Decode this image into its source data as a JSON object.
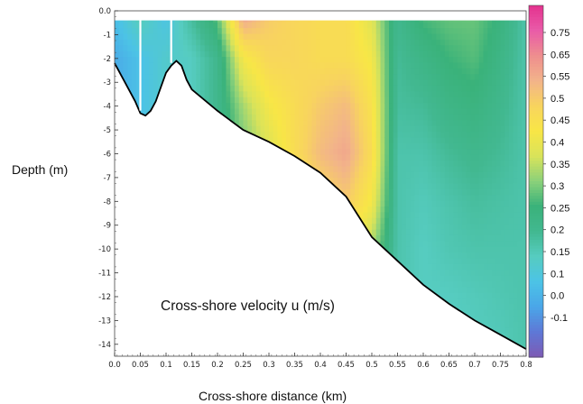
{
  "chart_data": {
    "type": "heatmap",
    "title": "",
    "annotation": "Cross-shore velocity u (m/s)",
    "xlabel": "Cross-shore distance (km)",
    "ylabel": "Depth (m)",
    "x_ticks": [
      "0.0",
      "0.05",
      "0.1",
      "0.15",
      "0.2",
      "0.25",
      "0.3",
      "0.35",
      "0.4",
      "0.45",
      "0.5",
      "0.55",
      "0.6",
      "0.65",
      "0.7",
      "0.75",
      "0.8"
    ],
    "x_end_label": "0.8",
    "y_ticks": [
      "0.0",
      "-1",
      "-2",
      "-3",
      "-4",
      "-5",
      "-6",
      "-7",
      "-8",
      "-9",
      "-10",
      "-11",
      "-12",
      "-13",
      "-14"
    ],
    "xlim": [
      0,
      0.8
    ],
    "ylim": [
      -14.5,
      0
    ],
    "colorbar": {
      "ticks": [
        "0.75",
        "0.65",
        "0.55",
        "0.5",
        "0.45",
        "0.4",
        "0.35",
        "0.3",
        "0.25",
        "0.2",
        "0.15",
        "0.1",
        "0.0",
        "-0.1"
      ],
      "range": [
        -0.15,
        0.8
      ],
      "colors": [
        "#7d5ab4",
        "#5e78d6",
        "#4aa6e8",
        "#4cc3e6",
        "#56ccc0",
        "#42b890",
        "#3ab27a",
        "#8bd17a",
        "#d9e35a",
        "#f8e646",
        "#f8d45e",
        "#f2b38a",
        "#ee8e8e",
        "#e95ba8",
        "#e4328f"
      ]
    },
    "velocity_field": {
      "x": [
        0.0,
        0.05,
        0.1,
        0.15,
        0.2,
        0.25,
        0.3,
        0.35,
        0.4,
        0.45,
        0.5,
        0.55,
        0.6,
        0.65,
        0.7,
        0.75,
        0.8
      ],
      "depths": [
        0,
        -2,
        -4,
        -6,
        -8,
        -10,
        -12,
        -14
      ],
      "u": [
        [
          0.05,
          0.15,
          0.05,
          0.18,
          0.3,
          0.65,
          0.55,
          0.52,
          0.5,
          0.5,
          0.4,
          0.2,
          0.28,
          0.3,
          0.3,
          0.25,
          0.15
        ],
        [
          0.0,
          0.05,
          0.1,
          0.12,
          0.2,
          0.45,
          0.52,
          0.52,
          0.5,
          0.5,
          0.45,
          0.18,
          0.22,
          0.26,
          0.28,
          0.22,
          0.15
        ],
        [
          0.0,
          0.05,
          0.1,
          0.12,
          0.2,
          0.35,
          0.45,
          0.5,
          0.55,
          0.58,
          0.48,
          0.17,
          0.18,
          0.22,
          0.24,
          0.2,
          0.15
        ],
        [
          0.0,
          0.05,
          0.1,
          0.12,
          0.2,
          0.3,
          0.4,
          0.5,
          0.58,
          0.62,
          0.5,
          0.15,
          0.15,
          0.18,
          0.2,
          0.18,
          0.15
        ],
        [
          0.0,
          0.05,
          0.1,
          0.12,
          0.2,
          0.28,
          0.35,
          0.45,
          0.5,
          0.55,
          0.45,
          0.15,
          0.13,
          0.15,
          0.17,
          0.16,
          0.15
        ],
        [
          0.0,
          0.05,
          0.1,
          0.12,
          0.2,
          0.25,
          0.3,
          0.4,
          0.45,
          0.45,
          0.35,
          0.15,
          0.12,
          0.14,
          0.15,
          0.15,
          0.15
        ],
        [
          0.0,
          0.05,
          0.1,
          0.12,
          0.2,
          0.25,
          0.3,
          0.35,
          0.4,
          0.4,
          0.3,
          0.15,
          0.12,
          0.12,
          0.13,
          0.14,
          0.15
        ],
        [
          0.0,
          0.05,
          0.1,
          0.12,
          0.2,
          0.25,
          0.3,
          0.35,
          0.4,
          0.4,
          0.3,
          0.15,
          0.12,
          0.12,
          0.12,
          0.13,
          0.15
        ]
      ]
    },
    "bottom_profile": {
      "x": [
        0.0,
        0.02,
        0.04,
        0.05,
        0.06,
        0.07,
        0.08,
        0.09,
        0.1,
        0.11,
        0.12,
        0.13,
        0.14,
        0.15,
        0.2,
        0.25,
        0.3,
        0.35,
        0.4,
        0.45,
        0.5,
        0.55,
        0.6,
        0.65,
        0.7,
        0.75,
        0.8
      ],
      "depth": [
        -2.2,
        -3.0,
        -3.8,
        -4.3,
        -4.4,
        -4.2,
        -3.8,
        -3.2,
        -2.6,
        -2.3,
        -2.1,
        -2.3,
        -2.9,
        -3.3,
        -4.2,
        -5.0,
        -5.5,
        -6.1,
        -6.8,
        -7.8,
        -9.5,
        -10.5,
        -11.5,
        -12.3,
        -13.0,
        -13.6,
        -14.2
      ]
    },
    "surface_depth": -0.4,
    "instrument_lines_x": [
      0.05,
      0.11
    ]
  }
}
